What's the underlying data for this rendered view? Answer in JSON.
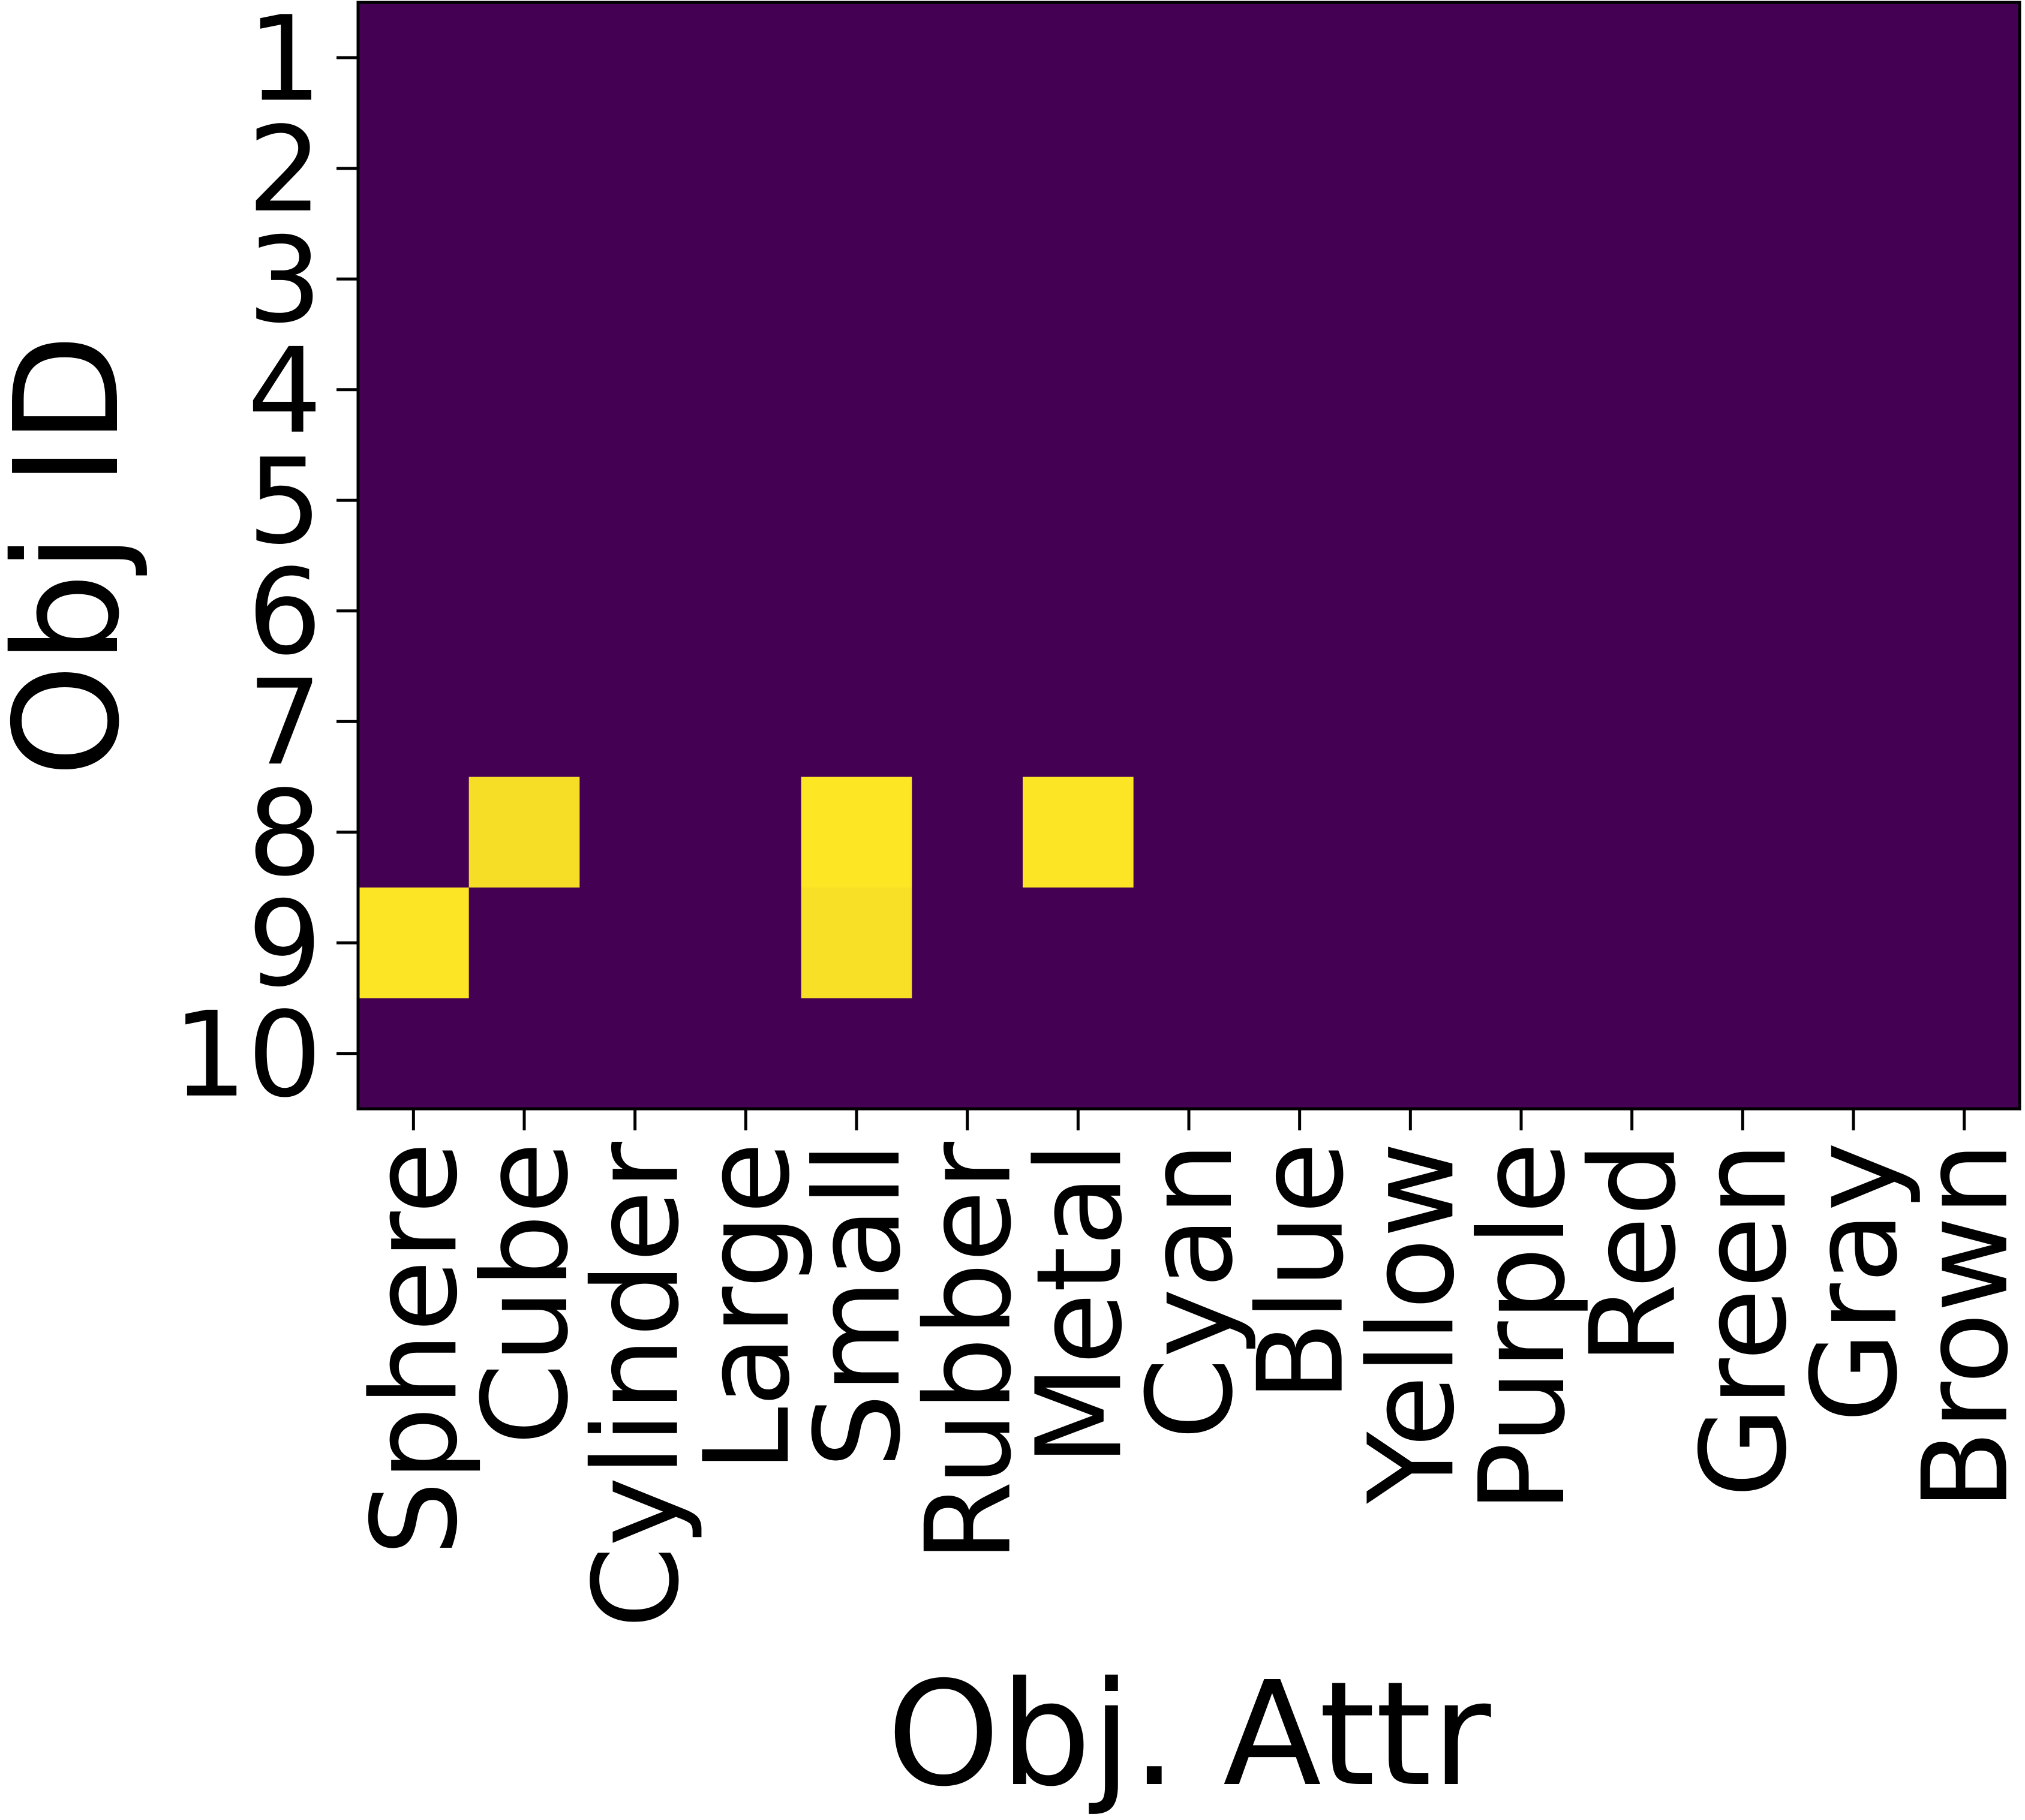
{
  "chart_data": {
    "type": "heatmap",
    "title": "",
    "xlabel": "Obj. Attr",
    "ylabel": "Obj ID",
    "x_categories": [
      "Sphere",
      "Cube",
      "Cylinder",
      "Large",
      "Small",
      "Rubber",
      "Metal",
      "Cyan",
      "Blue",
      "Yellow",
      "Purple",
      "Red",
      "Green",
      "Gray",
      "Brown"
    ],
    "y_categories": [
      "1",
      "2",
      "3",
      "4",
      "5",
      "6",
      "7",
      "8",
      "9",
      "10"
    ],
    "values": [
      [
        0,
        0,
        0,
        0,
        0,
        0,
        0,
        0,
        0,
        0,
        0,
        0,
        0,
        0,
        0
      ],
      [
        0,
        0,
        0,
        0,
        0,
        0,
        0,
        0,
        0,
        0,
        0,
        0,
        0,
        0,
        0
      ],
      [
        0,
        0,
        0,
        0,
        0,
        0,
        0,
        0,
        0,
        0,
        0,
        0,
        0,
        0,
        0
      ],
      [
        0,
        0,
        0,
        0,
        0,
        0,
        0,
        0,
        0,
        0,
        0,
        0,
        0,
        0,
        0
      ],
      [
        0,
        0,
        0,
        0,
        0,
        0,
        0,
        0,
        0,
        0,
        0,
        0,
        0,
        0,
        0
      ],
      [
        0,
        0,
        0,
        0,
        0,
        0,
        0,
        0,
        0,
        0,
        0,
        0,
        0,
        0,
        0
      ],
      [
        0,
        0,
        0,
        0,
        0,
        0,
        0,
        0,
        0,
        0,
        0,
        0,
        0,
        0,
        0
      ],
      [
        0,
        0.96,
        0,
        0,
        1.0,
        0,
        0.99,
        0,
        0,
        0,
        0,
        0,
        0,
        0,
        0
      ],
      [
        0.99,
        0,
        0,
        0,
        0.97,
        0,
        0,
        0,
        0,
        0,
        0,
        0,
        0,
        0,
        0
      ],
      [
        0,
        0,
        0,
        0,
        0,
        0,
        0,
        0,
        0,
        0,
        0,
        0,
        0,
        0,
        0
      ]
    ],
    "value_range": [
      0,
      1
    ],
    "colormap": "viridis",
    "grid": false,
    "legend": "none",
    "colors": {
      "low": "#440154",
      "high": "#fde725"
    }
  }
}
